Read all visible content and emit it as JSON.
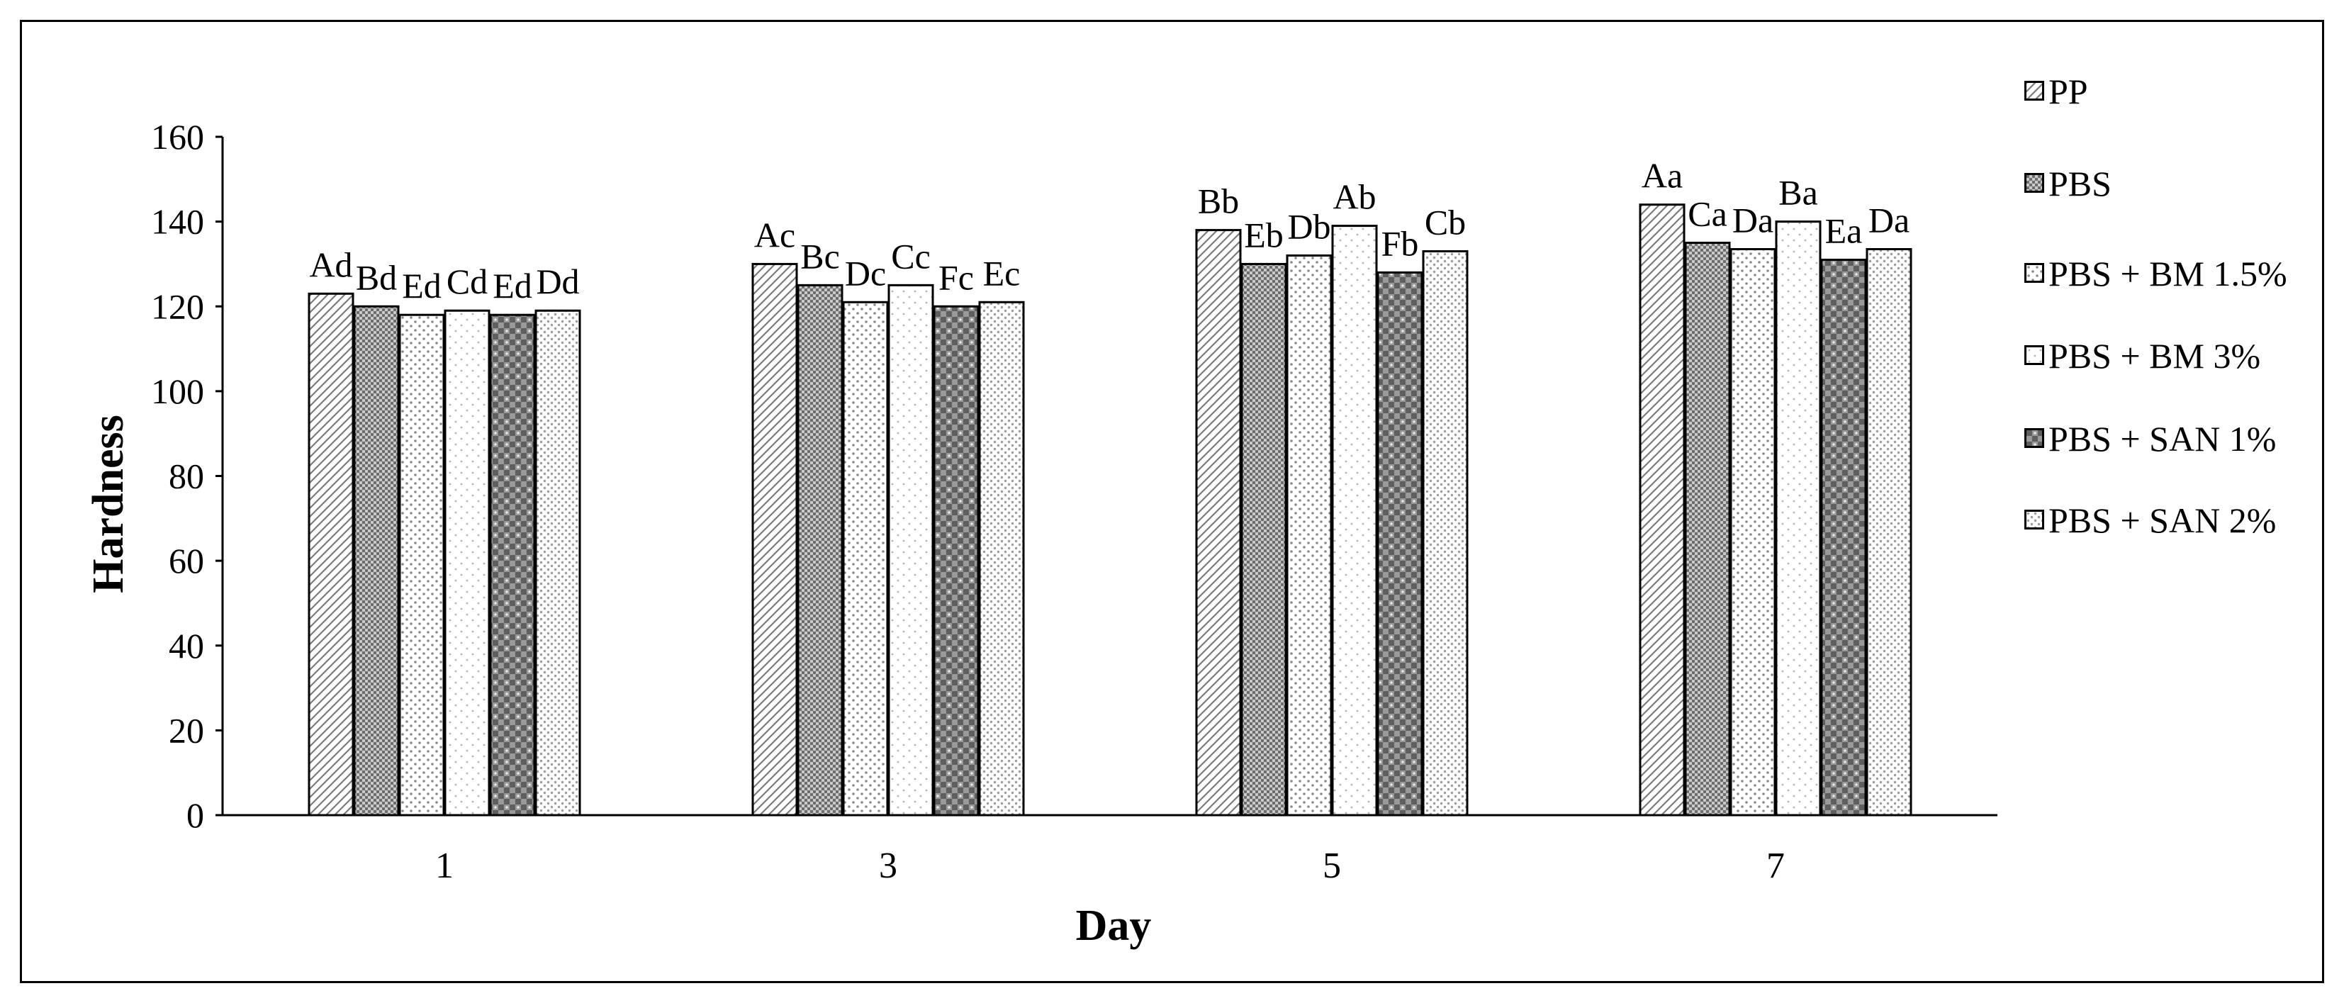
{
  "chart_data": {
    "type": "bar",
    "xlabel": "Day",
    "ylabel": "Hardness",
    "categories": [
      "1",
      "3",
      "5",
      "7"
    ],
    "ylim": [
      0,
      160
    ],
    "yticks": [
      0,
      20,
      40,
      60,
      80,
      100,
      120,
      140,
      160
    ],
    "grid": false,
    "legend_position": "right",
    "series": [
      {
        "name": "PP",
        "pattern": "diagonal",
        "values": [
          123,
          130,
          138,
          144
        ],
        "labels": [
          "Ad",
          "Ac",
          "Bb",
          "Aa"
        ]
      },
      {
        "name": "PBS",
        "pattern": "checker",
        "values": [
          120,
          125,
          130,
          135
        ],
        "labels": [
          "Bd",
          "Bc",
          "Eb",
          "Ca"
        ]
      },
      {
        "name": "PBS + BM 1.5%",
        "pattern": "dots-sparse",
        "values": [
          118,
          121,
          132,
          133.5
        ],
        "labels": [
          "Ed",
          "Dc",
          "Db",
          "Da"
        ]
      },
      {
        "name": "PBS + BM 3%",
        "pattern": "dots-light",
        "values": [
          119,
          125,
          139,
          140
        ],
        "labels": [
          "Cd",
          "Cc",
          "Ab",
          "Ba"
        ]
      },
      {
        "name": "PBS + SAN 1%",
        "pattern": "checker-dots",
        "values": [
          118,
          120,
          128,
          131
        ],
        "labels": [
          "Ed",
          "Fc",
          "Fb",
          "Ea"
        ]
      },
      {
        "name": "PBS + SAN 2%",
        "pattern": "dots-dense",
        "values": [
          119,
          121,
          133,
          133.5
        ],
        "labels": [
          "Dd",
          "Ec",
          "Cb",
          "Da"
        ]
      }
    ]
  }
}
